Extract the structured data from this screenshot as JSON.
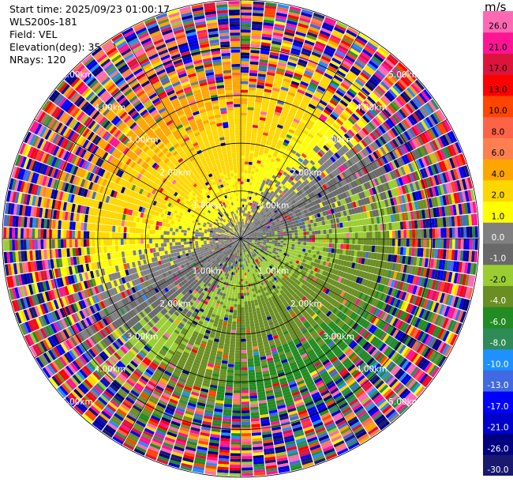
{
  "header": {
    "start_time": "Start time: 2025/09/23 01:00:17",
    "station": "WLS200s-181",
    "field": "Field: VEL",
    "elevation": "Elevation(deg): 35.00",
    "nrays": "NRays: 120"
  },
  "chart_data": {
    "type": "heatmap",
    "projection": "polar-ppi",
    "nrays": 120,
    "max_range_km": 5.0,
    "range_rings_km": [
      1.0,
      2.0,
      3.0,
      4.0,
      5.0
    ],
    "ring_labels": [
      "1.00km",
      "2.00km",
      "3.00km",
      "4.00km",
      "5.00km"
    ],
    "spokes_deg": [
      0,
      30,
      60,
      90,
      120,
      150,
      180,
      210,
      240,
      270,
      300,
      330
    ],
    "colorbar": {
      "unit": "m/s",
      "tick_labels": [
        "26.0",
        "21.0",
        "17.0",
        "13.0",
        "10.0",
        "8.0",
        "6.0",
        "4.0",
        "2.0",
        "1.0",
        "0.0",
        "-1.0",
        "-2.0",
        "-4.0",
        "-6.0",
        "-8.0",
        "-10.0",
        "-13.0",
        "-17.0",
        "-21.0",
        "-26.0",
        "-30.0"
      ],
      "bounds": [
        -30,
        -26,
        -21,
        -17,
        -13,
        -10,
        -8,
        -6,
        -4,
        -2,
        -1,
        0,
        1,
        2,
        4,
        6,
        8,
        10,
        13,
        17,
        21,
        26,
        30
      ],
      "colors": [
        "#191970",
        "#000080",
        "#0000cd",
        "#0000ff",
        "#4169e1",
        "#1e90ff",
        "#2e8b57",
        "#228b22",
        "#6b8e23",
        "#9acd32",
        "#696969",
        "#808080",
        "#ffff00",
        "#ffd700",
        "#ffa500",
        "#ff7f50",
        "#ff6347",
        "#ff4500",
        "#ff0000",
        "#dc143c",
        "#ff1493",
        "#ff69b4"
      ]
    }
  }
}
